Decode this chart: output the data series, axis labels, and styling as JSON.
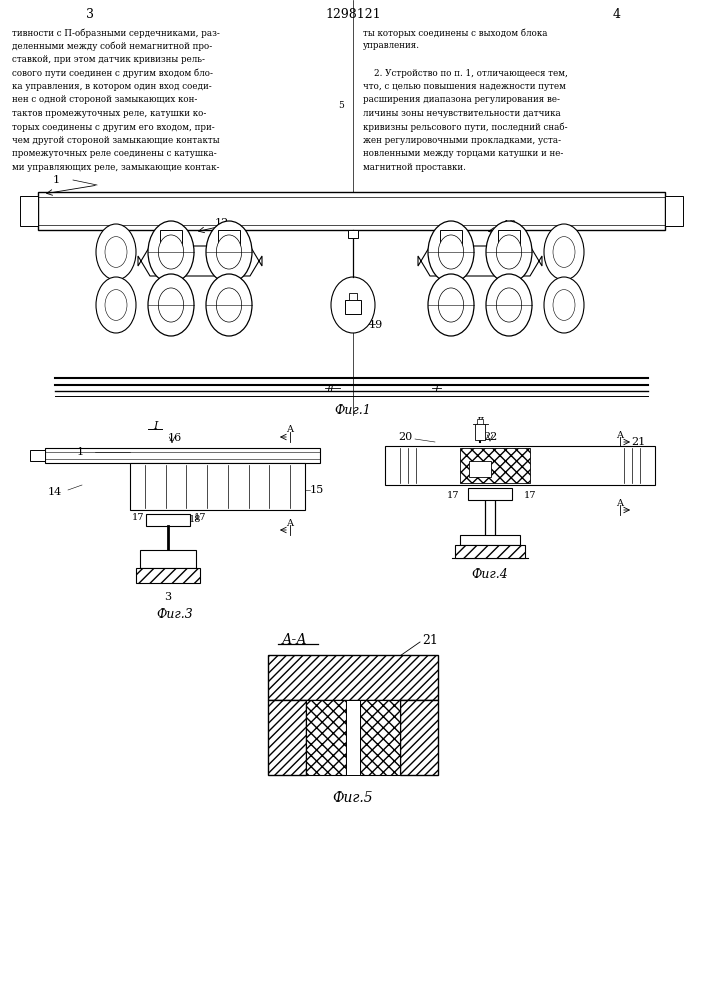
{
  "title": "1298121",
  "page_left": "3",
  "page_right": "4",
  "bg_color": "#ffffff",
  "line_color": "#000000",
  "text_left": "тивности с П-образными сердечниками, раз-\nделенными между собой немагнитной про-\nставкой, при этом датчик кривизны рель-\nсового пути соединен с другим входом бло-\nка управления, в котором один вход соеди-\nнен с одной стороной замыкающих кон-\nтактов промежуточных реле, катушки ко-\nторых соединены с другим его входом, при-\nчем другой стороной замыкающие контакты\nпромежуточных реле соединены с катушка-\nми управляющих реле, замыкающие контак-",
  "text_right": "ты которых соединены с выходом блока\nуправления.\n\n    2. Устройство по п. 1, отличающееся тем,\nчто, с целью повышения надежности путем\nрасширения диапазона регулирования ве-\nличины зоны нечувствительности датчика\nкривизны рельсового пути, последний снаб-\nжен регулировочными прокладками, уста-\nновленными между торцами катушки и не-\nмагнитной проставки.",
  "line_number": "5"
}
